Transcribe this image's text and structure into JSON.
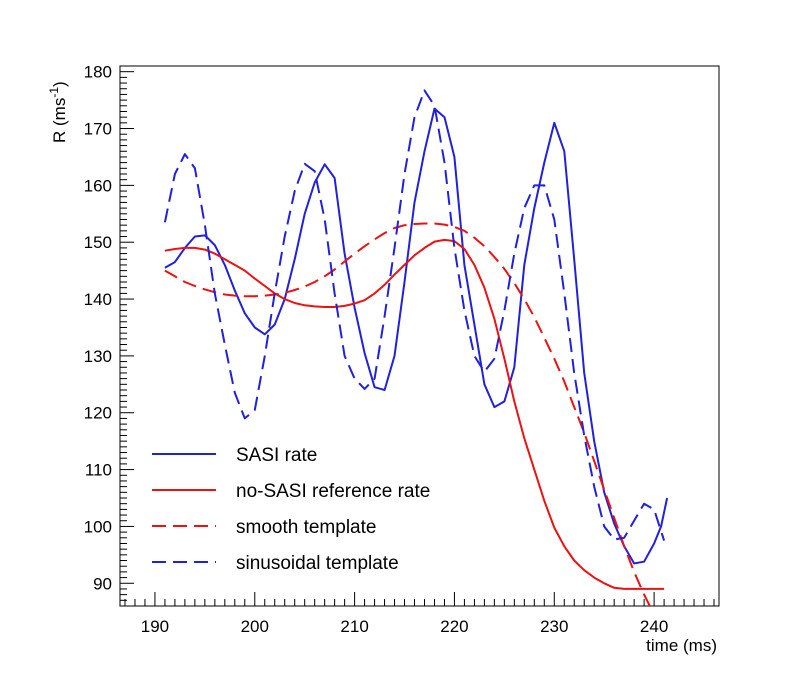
{
  "chart_data": {
    "type": "line",
    "xlabel": "time (ms)",
    "ylabel_main": "R (ms",
    "ylabel_sup": "-1",
    "ylabel_close": ")",
    "xlim": [
      186.5,
      246.5
    ],
    "ylim": [
      86,
      181
    ],
    "x_ticks": [
      190,
      200,
      210,
      220,
      230,
      240
    ],
    "y_ticks": [
      90,
      100,
      110,
      120,
      130,
      140,
      150,
      160,
      170,
      180
    ],
    "legend_position": "bottom-left",
    "series": [
      {
        "name": "SASI rate",
        "color": "#2020dd",
        "dash": "solid",
        "points": [
          [
            191,
            145.5
          ],
          [
            192,
            146.5
          ],
          [
            193,
            149
          ],
          [
            194,
            151
          ],
          [
            195,
            151.2
          ],
          [
            196,
            149.5
          ],
          [
            197,
            146
          ],
          [
            198,
            141.5
          ],
          [
            199,
            137.5
          ],
          [
            200,
            135
          ],
          [
            201,
            133.8
          ],
          [
            202,
            135.5
          ],
          [
            203,
            140
          ],
          [
            204,
            147
          ],
          [
            205,
            155
          ],
          [
            206,
            160.5
          ],
          [
            207,
            163.7
          ],
          [
            208,
            161.3
          ],
          [
            209,
            148
          ],
          [
            210,
            138.5
          ],
          [
            211,
            130.5
          ],
          [
            212,
            124.5
          ],
          [
            213,
            124
          ],
          [
            214,
            130
          ],
          [
            215,
            143
          ],
          [
            216,
            157
          ],
          [
            217,
            166
          ],
          [
            218,
            173.5
          ],
          [
            219,
            172
          ],
          [
            220,
            165
          ],
          [
            221,
            146
          ],
          [
            222,
            135.5
          ],
          [
            223,
            125
          ],
          [
            224,
            121
          ],
          [
            225,
            122
          ],
          [
            226,
            128
          ],
          [
            227,
            146
          ],
          [
            228,
            156
          ],
          [
            229,
            164
          ],
          [
            230,
            171
          ],
          [
            231,
            166
          ],
          [
            232,
            147
          ],
          [
            233,
            127
          ],
          [
            234,
            115
          ],
          [
            235,
            106
          ],
          [
            236,
            100.5
          ],
          [
            237,
            96.5
          ],
          [
            238,
            93.5
          ],
          [
            239,
            93.8
          ],
          [
            240,
            97
          ],
          [
            240.7,
            100
          ],
          [
            241.3,
            105
          ]
        ]
      },
      {
        "name": "no-SASI reference rate",
        "color": "#ee1111",
        "dash": "solid",
        "points": [
          [
            191,
            148.5
          ],
          [
            192,
            148.8
          ],
          [
            193,
            149
          ],
          [
            194,
            149
          ],
          [
            195,
            148.7
          ],
          [
            196,
            148
          ],
          [
            197,
            147
          ],
          [
            198,
            146
          ],
          [
            199,
            145
          ],
          [
            200,
            143.6
          ],
          [
            201,
            142.3
          ],
          [
            202,
            141
          ],
          [
            203,
            140
          ],
          [
            204,
            139.3
          ],
          [
            205,
            138.9
          ],
          [
            206,
            138.7
          ],
          [
            207,
            138.6
          ],
          [
            208,
            138.6
          ],
          [
            209,
            138.8
          ],
          [
            210,
            139.2
          ],
          [
            211,
            139.8
          ],
          [
            212,
            141
          ],
          [
            213,
            142.5
          ],
          [
            214,
            144.3
          ],
          [
            215,
            146
          ],
          [
            216,
            147.7
          ],
          [
            217,
            149
          ],
          [
            218,
            150.1
          ],
          [
            219,
            150.4
          ],
          [
            220,
            150.2
          ],
          [
            221,
            148.8
          ],
          [
            222,
            146
          ],
          [
            223,
            142
          ],
          [
            224,
            136.5
          ],
          [
            225,
            129.5
          ],
          [
            226,
            122
          ],
          [
            227,
            115.5
          ],
          [
            228,
            110
          ],
          [
            229,
            104.5
          ],
          [
            230,
            99.8
          ],
          [
            231,
            96.5
          ],
          [
            232,
            94
          ],
          [
            233,
            92.3
          ],
          [
            234,
            91
          ],
          [
            235,
            90
          ],
          [
            236,
            89.2
          ],
          [
            237,
            89
          ],
          [
            238,
            89
          ],
          [
            239,
            89
          ],
          [
            240,
            89
          ],
          [
            241,
            89
          ]
        ]
      },
      {
        "name": "smooth template",
        "color": "#ee1111",
        "dash": "dashed",
        "points": [
          [
            191,
            145
          ],
          [
            192,
            144
          ],
          [
            193,
            143
          ],
          [
            194,
            142.3
          ],
          [
            195,
            141.7
          ],
          [
            196,
            141.2
          ],
          [
            197,
            140.8
          ],
          [
            198,
            140.6
          ],
          [
            199,
            140.5
          ],
          [
            200,
            140.5
          ],
          [
            201,
            140.6
          ],
          [
            202,
            140.8
          ],
          [
            203,
            141.1
          ],
          [
            204,
            141.6
          ],
          [
            205,
            142.2
          ],
          [
            206,
            143
          ],
          [
            207,
            144
          ],
          [
            208,
            145.2
          ],
          [
            209,
            146.6
          ],
          [
            210,
            148
          ],
          [
            211,
            149.3
          ],
          [
            212,
            150.5
          ],
          [
            213,
            151.6
          ],
          [
            214,
            152.5
          ],
          [
            215,
            153
          ],
          [
            216,
            153.2
          ],
          [
            217,
            153.3
          ],
          [
            218,
            153.3
          ],
          [
            219,
            153.1
          ],
          [
            220,
            152.7
          ],
          [
            221,
            152
          ],
          [
            222,
            150.8
          ],
          [
            223,
            149.3
          ],
          [
            224,
            147.4
          ],
          [
            225,
            145.3
          ],
          [
            226,
            142.8
          ],
          [
            227,
            140
          ],
          [
            228,
            136.8
          ],
          [
            229,
            133.2
          ],
          [
            230,
            129.5
          ],
          [
            231,
            125.5
          ],
          [
            232,
            121
          ],
          [
            233,
            116.5
          ],
          [
            234,
            111.5
          ],
          [
            235,
            106.5
          ],
          [
            236,
            101.5
          ],
          [
            237,
            96.5
          ],
          [
            238,
            92
          ],
          [
            239,
            88
          ],
          [
            240,
            84.5
          ],
          [
            241,
            81.5
          ]
        ]
      },
      {
        "name": "sinusoidal template",
        "color": "#2020dd",
        "dash": "dashed",
        "points": [
          [
            191,
            153.5
          ],
          [
            192,
            162
          ],
          [
            193,
            165.5
          ],
          [
            194,
            163
          ],
          [
            195,
            153
          ],
          [
            196,
            141
          ],
          [
            197,
            132
          ],
          [
            198,
            123.5
          ],
          [
            199,
            119
          ],
          [
            200,
            120.5
          ],
          [
            201,
            130
          ],
          [
            202,
            141
          ],
          [
            203,
            151
          ],
          [
            204,
            159
          ],
          [
            205,
            163.8
          ],
          [
            206,
            162.5
          ],
          [
            207,
            154
          ],
          [
            208,
            141
          ],
          [
            209,
            130
          ],
          [
            210,
            126
          ],
          [
            211,
            124.2
          ],
          [
            212,
            126
          ],
          [
            213,
            137
          ],
          [
            214,
            149
          ],
          [
            215,
            162
          ],
          [
            216,
            172
          ],
          [
            217,
            176.7
          ],
          [
            218,
            174
          ],
          [
            219,
            164
          ],
          [
            220,
            149
          ],
          [
            221,
            138
          ],
          [
            222,
            130
          ],
          [
            223,
            127.2
          ],
          [
            224,
            129.5
          ],
          [
            225,
            138
          ],
          [
            226,
            148
          ],
          [
            227,
            156
          ],
          [
            228,
            160
          ],
          [
            229,
            160
          ],
          [
            230,
            154
          ],
          [
            231,
            141
          ],
          [
            232,
            127
          ],
          [
            233,
            116
          ],
          [
            234,
            107
          ],
          [
            235,
            100
          ],
          [
            236,
            97.7
          ],
          [
            237,
            98
          ],
          [
            238,
            101
          ],
          [
            239,
            104
          ],
          [
            240,
            103
          ],
          [
            241,
            97.5
          ]
        ]
      }
    ]
  }
}
